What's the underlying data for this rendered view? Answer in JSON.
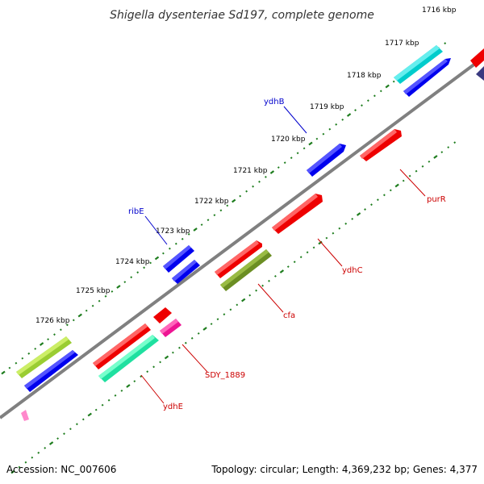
{
  "title": "Shigella dysenteriae Sd197, complete genome",
  "accession": "Accession: NC_007606",
  "summary": "Topology: circular; Length: 4,369,232 bp; Genes: 4,377",
  "ticks": [
    "1716 kbp",
    "1717 kbp",
    "1718 kbp",
    "1719 kbp",
    "1720 kbp",
    "1721 kbp",
    "1722 kbp",
    "1723 kbp",
    "1724 kbp",
    "1725 kbp",
    "1726 kbp"
  ],
  "gene_labels": {
    "ydhB": "ydhB",
    "ribE": "ribE",
    "purR": "purR",
    "ydhC": "ydhC",
    "cfa": "cfa",
    "SDY_1889": "SDY_1889",
    "ydhE": "ydhE"
  },
  "colors": {
    "backbone": "#808080",
    "tick": "#1e7d1e",
    "forward_label": "#0000cc",
    "reverse_label": "#cc0000",
    "blue_gene": "#0000ee",
    "red_gene": "#ee0000",
    "cyan_gene": "#00cccc",
    "olive_gene": "#6b8e23",
    "lime_gene": "#9acd32",
    "aqua_green_gene": "#1fe0a0",
    "magenta_gene": "#ee1493",
    "navy_gene": "#3a3a80",
    "pink_gene": "#ff88cc"
  }
}
